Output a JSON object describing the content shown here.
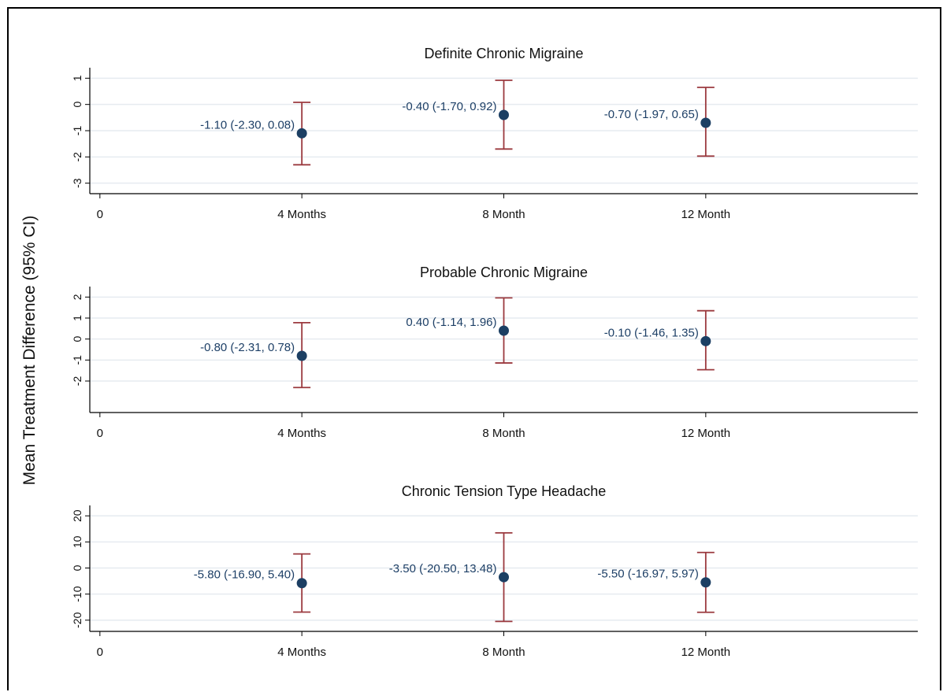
{
  "figure": {
    "ylabel": "Mean Treatment Difference (95% CI)"
  },
  "colors": {
    "point": "#1c3f63",
    "ci": "#9b3a3f",
    "grid": "#e6ebf0",
    "axis": "#000000",
    "label": "#1d3f66"
  },
  "chart_data": [
    {
      "type": "scatter",
      "title": "Definite Chronic Migraine",
      "xlabel": "",
      "ylabel": "",
      "x_ticks": [
        {
          "x": 0,
          "label": "0"
        },
        {
          "x": 1,
          "label": "4 Months"
        },
        {
          "x": 2,
          "label": "8 Month"
        },
        {
          "x": 3,
          "label": "12 Month"
        }
      ],
      "xlim": [
        -0.05,
        4.05
      ],
      "y_ticks": [
        1,
        0,
        -1,
        -2,
        -3
      ],
      "ylim": [
        -3.4,
        1.4
      ],
      "grid": true,
      "points": [
        {
          "x": 1,
          "estimate": -1.1,
          "lower": -2.3,
          "upper": 0.08,
          "label": "-1.10 (-2.30, 0.08)"
        },
        {
          "x": 2,
          "estimate": -0.4,
          "lower": -1.7,
          "upper": 0.92,
          "label": "-0.40 (-1.70, 0.92)"
        },
        {
          "x": 3,
          "estimate": -0.7,
          "lower": -1.97,
          "upper": 0.65,
          "label": "-0.70 (-1.97, 0.65)"
        }
      ]
    },
    {
      "type": "scatter",
      "title": "Probable Chronic Migraine",
      "xlabel": "",
      "ylabel": "",
      "x_ticks": [
        {
          "x": 0,
          "label": "0"
        },
        {
          "x": 1,
          "label": "4 Months"
        },
        {
          "x": 2,
          "label": "8 Month"
        },
        {
          "x": 3,
          "label": "12 Month"
        }
      ],
      "xlim": [
        -0.05,
        4.05
      ],
      "y_ticks": [
        2,
        1,
        0,
        -1,
        -2
      ],
      "ylim": [
        -3.5,
        2.5
      ],
      "grid": true,
      "points": [
        {
          "x": 1,
          "estimate": -0.8,
          "lower": -2.31,
          "upper": 0.78,
          "label": "-0.80 (-2.31, 0.78)"
        },
        {
          "x": 2,
          "estimate": 0.4,
          "lower": -1.14,
          "upper": 1.96,
          "label": "0.40 (-1.14, 1.96)"
        },
        {
          "x": 3,
          "estimate": -0.1,
          "lower": -1.46,
          "upper": 1.35,
          "label": "-0.10 (-1.46, 1.35)"
        }
      ]
    },
    {
      "type": "scatter",
      "title": "Chronic Tension Type Headache",
      "xlabel": "",
      "ylabel": "",
      "x_ticks": [
        {
          "x": 0,
          "label": "0"
        },
        {
          "x": 1,
          "label": "4 Months"
        },
        {
          "x": 2,
          "label": "8 Month"
        },
        {
          "x": 3,
          "label": "12 Month"
        }
      ],
      "xlim": [
        -0.05,
        4.05
      ],
      "y_ticks": [
        20,
        10,
        0,
        -10,
        -20
      ],
      "ylim": [
        -24.3,
        24
      ],
      "grid": true,
      "points": [
        {
          "x": 1,
          "estimate": -5.8,
          "lower": -16.9,
          "upper": 5.4,
          "label": "-5.80 (-16.90, 5.40)"
        },
        {
          "x": 2,
          "estimate": -3.5,
          "lower": -20.5,
          "upper": 13.48,
          "label": "-3.50 (-20.50, 13.48)"
        },
        {
          "x": 3,
          "estimate": -5.5,
          "lower": -16.97,
          "upper": 5.97,
          "label": "-5.50 (-16.97, 5.97)"
        }
      ]
    }
  ]
}
